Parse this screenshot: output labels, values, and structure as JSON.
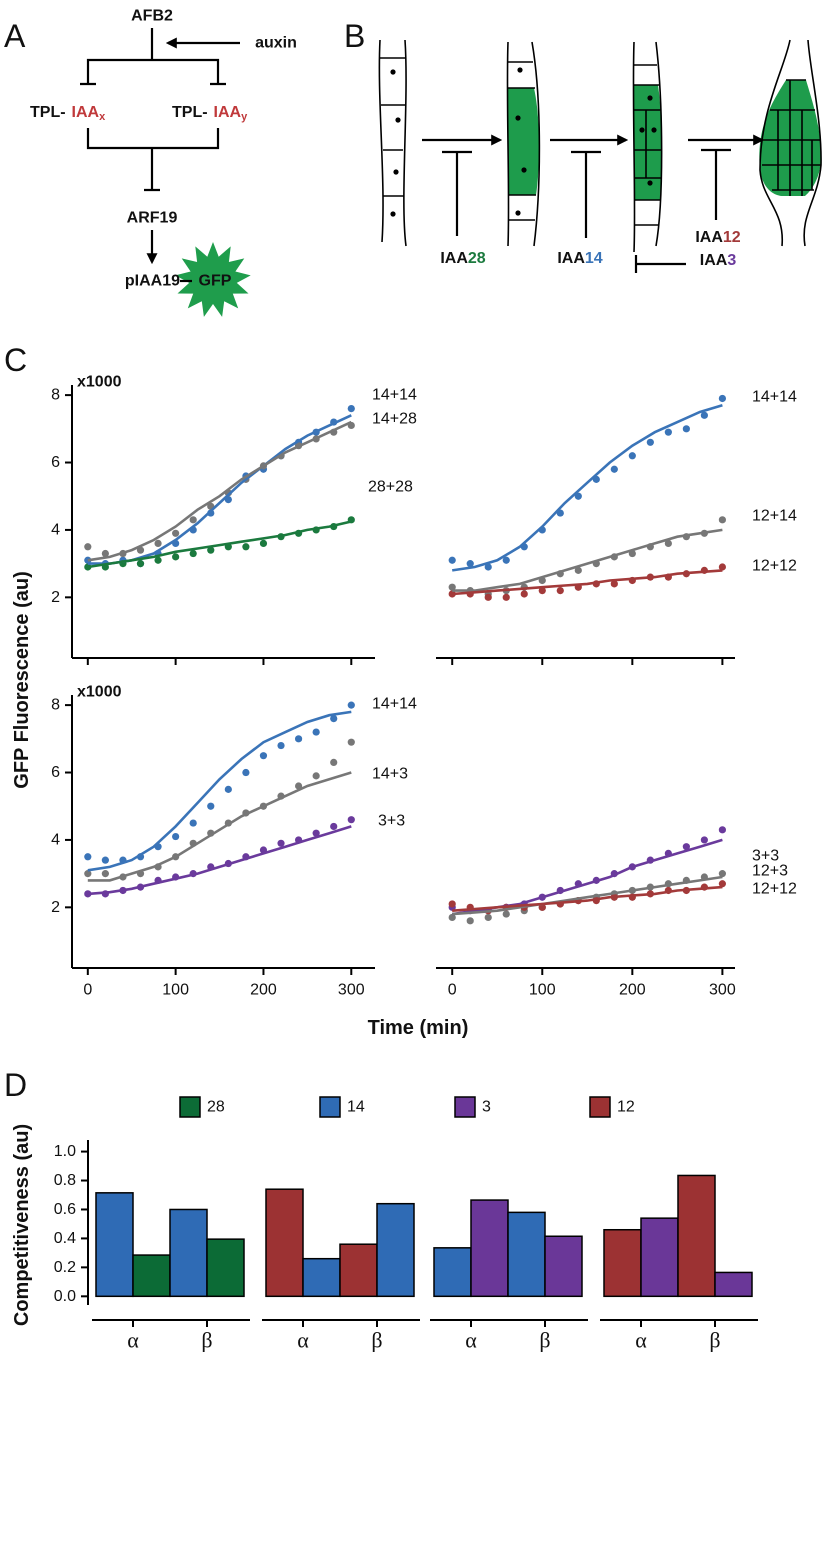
{
  "panel_labels": [
    "A",
    "B",
    "C",
    "D"
  ],
  "diagram_a": {
    "afb2": "AFB2",
    "auxin": "auxin",
    "tpl_x": "TPL-",
    "iaa_x": "IAA",
    "sub_x": "x",
    "tpl_y": "TPL-",
    "iaa_y": "IAA",
    "sub_y": "y",
    "arf19": "ARF19",
    "piaa19": "pIAA19",
    "gfp": "GFP"
  },
  "diagram_b": {
    "labels": [
      {
        "prefix": "IAA",
        "suffix": "28",
        "color": "#1b7a3e"
      },
      {
        "prefix": "IAA",
        "suffix": "14",
        "color": "#3a74b8"
      },
      {
        "prefix": "IAA",
        "suffix": "12",
        "color": "#a33a3a"
      },
      {
        "prefix": "IAA",
        "suffix": "3",
        "color": "#6a3a9c"
      }
    ]
  },
  "panel_c": {
    "y_label": "GFP Fluorescence (au)",
    "x_label": "Time (min)"
  },
  "chart_data": [
    {
      "type": "line",
      "y_multiplier": "x1000",
      "xlim": [
        -18,
        327
      ],
      "ylim": [
        0.2,
        8.3
      ],
      "yticks": [
        2,
        4,
        6,
        8
      ],
      "xticks": [
        0,
        100,
        200,
        300
      ],
      "xtick_labels": false,
      "x": [
        0,
        20,
        40,
        60,
        80,
        100,
        120,
        140,
        160,
        180,
        200,
        220,
        240,
        260,
        280,
        300
      ],
      "fit_x": [
        0,
        25,
        50,
        75,
        100,
        125,
        150,
        175,
        200,
        225,
        250,
        275,
        300
      ],
      "series": [
        {
          "name": "14+14",
          "color": "#3a74b8",
          "values": [
            3.1,
            3.0,
            3.1,
            3.0,
            3.3,
            3.6,
            4.0,
            4.5,
            4.9,
            5.6,
            5.8,
            6.2,
            6.6,
            6.9,
            7.2,
            7.6
          ],
          "fit": [
            3.0,
            3.0,
            3.1,
            3.3,
            3.7,
            4.2,
            4.8,
            5.4,
            5.9,
            6.4,
            6.8,
            7.1,
            7.4
          ]
        },
        {
          "name": "14+28",
          "color": "#777777",
          "values": [
            3.5,
            3.3,
            3.3,
            3.4,
            3.6,
            3.9,
            4.3,
            4.7,
            5.1,
            5.5,
            5.9,
            6.2,
            6.5,
            6.7,
            6.9,
            7.1
          ],
          "fit": [
            3.1,
            3.2,
            3.4,
            3.7,
            4.1,
            4.6,
            5.0,
            5.5,
            5.9,
            6.3,
            6.6,
            6.9,
            7.2
          ]
        },
        {
          "name": "28+28",
          "color": "#1b7a3e",
          "values": [
            2.9,
            2.9,
            3.0,
            3.0,
            3.1,
            3.2,
            3.3,
            3.4,
            3.5,
            3.5,
            3.6,
            3.8,
            3.9,
            4.0,
            4.1,
            4.3
          ],
          "fit": [
            2.9,
            3.0,
            3.1,
            3.2,
            3.35,
            3.45,
            3.55,
            3.65,
            3.75,
            3.85,
            4.0,
            4.1,
            4.25
          ]
        }
      ]
    },
    {
      "type": "line",
      "xlim": [
        -18,
        314
      ],
      "ylim": [
        0.2,
        8.3
      ],
      "xticks": [
        0,
        100,
        200,
        300
      ],
      "xtick_labels": false,
      "x": [
        0,
        20,
        40,
        60,
        80,
        100,
        120,
        140,
        160,
        180,
        200,
        220,
        240,
        260,
        280,
        300
      ],
      "fit_x": [
        0,
        25,
        50,
        75,
        100,
        125,
        150,
        175,
        200,
        225,
        250,
        275,
        300
      ],
      "series": [
        {
          "name": "14+14",
          "color": "#3a74b8",
          "values": [
            3.1,
            3.0,
            2.9,
            3.1,
            3.5,
            4.0,
            4.5,
            5.0,
            5.5,
            5.8,
            6.2,
            6.6,
            6.9,
            7.0,
            7.4,
            7.9
          ],
          "fit": [
            2.8,
            2.9,
            3.1,
            3.5,
            4.1,
            4.8,
            5.4,
            6.0,
            6.5,
            6.9,
            7.2,
            7.5,
            7.7
          ]
        },
        {
          "name": "12+14",
          "color": "#777777",
          "values": [
            2.3,
            2.2,
            2.1,
            2.2,
            2.3,
            2.5,
            2.7,
            2.8,
            3.0,
            3.2,
            3.3,
            3.5,
            3.6,
            3.8,
            3.9,
            4.3
          ],
          "fit": [
            2.2,
            2.2,
            2.3,
            2.4,
            2.6,
            2.8,
            3.0,
            3.2,
            3.4,
            3.6,
            3.8,
            3.9,
            4.0
          ]
        },
        {
          "name": "12+12",
          "color": "#a33a3a",
          "values": [
            2.1,
            2.1,
            2.0,
            2.0,
            2.1,
            2.2,
            2.2,
            2.3,
            2.4,
            2.4,
            2.5,
            2.6,
            2.6,
            2.7,
            2.8,
            2.9
          ],
          "fit": [
            2.1,
            2.15,
            2.2,
            2.25,
            2.3,
            2.35,
            2.4,
            2.5,
            2.55,
            2.6,
            2.7,
            2.75,
            2.8
          ]
        }
      ]
    },
    {
      "type": "line",
      "y_multiplier": "x1000",
      "xlim": [
        -18,
        327
      ],
      "ylim": [
        0.2,
        8.3
      ],
      "yticks": [
        2,
        4,
        6,
        8
      ],
      "xticks": [
        0,
        100,
        200,
        300
      ],
      "xtick_labels": true,
      "x": [
        0,
        20,
        40,
        60,
        80,
        100,
        120,
        140,
        160,
        180,
        200,
        220,
        240,
        260,
        280,
        300
      ],
      "fit_x": [
        0,
        25,
        50,
        75,
        100,
        125,
        150,
        175,
        200,
        225,
        250,
        275,
        300
      ],
      "series": [
        {
          "name": "14+14",
          "color": "#3a74b8",
          "values": [
            3.5,
            3.4,
            3.4,
            3.5,
            3.8,
            4.1,
            4.5,
            5.0,
            5.5,
            6.0,
            6.5,
            6.8,
            7.0,
            7.2,
            7.6,
            8.0
          ],
          "fit": [
            3.1,
            3.2,
            3.4,
            3.8,
            4.4,
            5.1,
            5.8,
            6.4,
            6.9,
            7.2,
            7.5,
            7.7,
            7.8
          ]
        },
        {
          "name": "14+3",
          "color": "#777777",
          "values": [
            3.0,
            3.0,
            2.9,
            3.0,
            3.2,
            3.5,
            3.9,
            4.2,
            4.5,
            4.8,
            5.0,
            5.3,
            5.6,
            5.9,
            6.3,
            6.9
          ],
          "fit": [
            2.8,
            2.8,
            3.0,
            3.2,
            3.5,
            3.9,
            4.3,
            4.7,
            5.0,
            5.3,
            5.6,
            5.8,
            6.0
          ]
        },
        {
          "name": "3+3",
          "color": "#6a3a9c",
          "values": [
            2.4,
            2.4,
            2.5,
            2.6,
            2.8,
            2.9,
            3.0,
            3.2,
            3.3,
            3.5,
            3.7,
            3.9,
            4.0,
            4.2,
            4.4,
            4.6
          ],
          "fit": [
            2.4,
            2.45,
            2.55,
            2.7,
            2.85,
            3.0,
            3.2,
            3.4,
            3.6,
            3.8,
            4.0,
            4.2,
            4.4
          ]
        }
      ]
    },
    {
      "type": "line",
      "xlim": [
        -18,
        314
      ],
      "ylim": [
        0.2,
        8.3
      ],
      "xticks": [
        0,
        100,
        200,
        300
      ],
      "xtick_labels": true,
      "x": [
        0,
        20,
        40,
        60,
        80,
        100,
        120,
        140,
        160,
        180,
        200,
        220,
        240,
        260,
        280,
        300
      ],
      "fit_x": [
        0,
        25,
        50,
        75,
        100,
        125,
        150,
        175,
        200,
        225,
        250,
        275,
        300
      ],
      "series": [
        {
          "name": "3+3",
          "color": "#6a3a9c",
          "values": [
            2.0,
            1.9,
            1.9,
            2.0,
            2.1,
            2.3,
            2.5,
            2.7,
            2.8,
            3.0,
            3.2,
            3.4,
            3.6,
            3.8,
            4.0,
            4.3
          ],
          "fit": [
            1.8,
            1.9,
            2.0,
            2.1,
            2.3,
            2.5,
            2.7,
            2.9,
            3.2,
            3.4,
            3.6,
            3.8,
            4.0
          ]
        },
        {
          "name": "12+3",
          "color": "#777777",
          "values": [
            1.7,
            1.6,
            1.7,
            1.8,
            1.9,
            2.0,
            2.1,
            2.2,
            2.3,
            2.4,
            2.5,
            2.6,
            2.7,
            2.8,
            2.9,
            3.0
          ],
          "fit": [
            1.8,
            1.85,
            1.9,
            2.0,
            2.1,
            2.2,
            2.3,
            2.4,
            2.5,
            2.6,
            2.7,
            2.8,
            2.9
          ]
        },
        {
          "name": "12+12",
          "color": "#a33a3a",
          "values": [
            2.1,
            2.0,
            1.9,
            2.0,
            2.0,
            2.0,
            2.1,
            2.2,
            2.2,
            2.3,
            2.3,
            2.4,
            2.5,
            2.5,
            2.6,
            2.7
          ],
          "fit": [
            1.9,
            1.95,
            2.0,
            2.05,
            2.1,
            2.15,
            2.2,
            2.3,
            2.35,
            2.4,
            2.5,
            2.55,
            2.6
          ]
        }
      ]
    },
    {
      "type": "bar",
      "y_label": "Competitiveness (au)",
      "ylim": [
        -0.06,
        1.08
      ],
      "yticks": [
        {
          "value": 0,
          "label": "0.0"
        },
        0.2,
        0.4,
        0.6,
        0.8,
        {
          "value": 1,
          "label": "1.0"
        }
      ],
      "series": [
        {
          "name": "28",
          "color": "#0c6b36"
        },
        {
          "name": "14",
          "color": "#2f6bb5"
        },
        {
          "name": "3",
          "color": "#6a3798"
        },
        {
          "name": "12",
          "color": "#9c3233"
        }
      ],
      "panels": [
        {
          "categories": [
            "α",
            "β"
          ],
          "bars": [
            {
              "series": 1,
              "values": [
                0.715,
                0.6
              ]
            },
            {
              "series": 0,
              "values": [
                0.285,
                0.395
              ]
            }
          ]
        },
        {
          "categories": [
            "α",
            "β"
          ],
          "bars": [
            {
              "series": 3,
              "values": [
                0.74,
                0.36
              ]
            },
            {
              "series": 1,
              "values": [
                0.26,
                0.64
              ]
            }
          ]
        },
        {
          "categories": [
            "α",
            "β"
          ],
          "bars": [
            {
              "series": 1,
              "values": [
                0.335,
                0.58
              ]
            },
            {
              "series": 2,
              "values": [
                0.665,
                0.415
              ]
            }
          ]
        },
        {
          "categories": [
            "α",
            "β"
          ],
          "bars": [
            {
              "series": 3,
              "values": [
                0.46,
                0.835
              ]
            },
            {
              "series": 2,
              "values": [
                0.54,
                0.165
              ]
            }
          ]
        }
      ]
    }
  ]
}
